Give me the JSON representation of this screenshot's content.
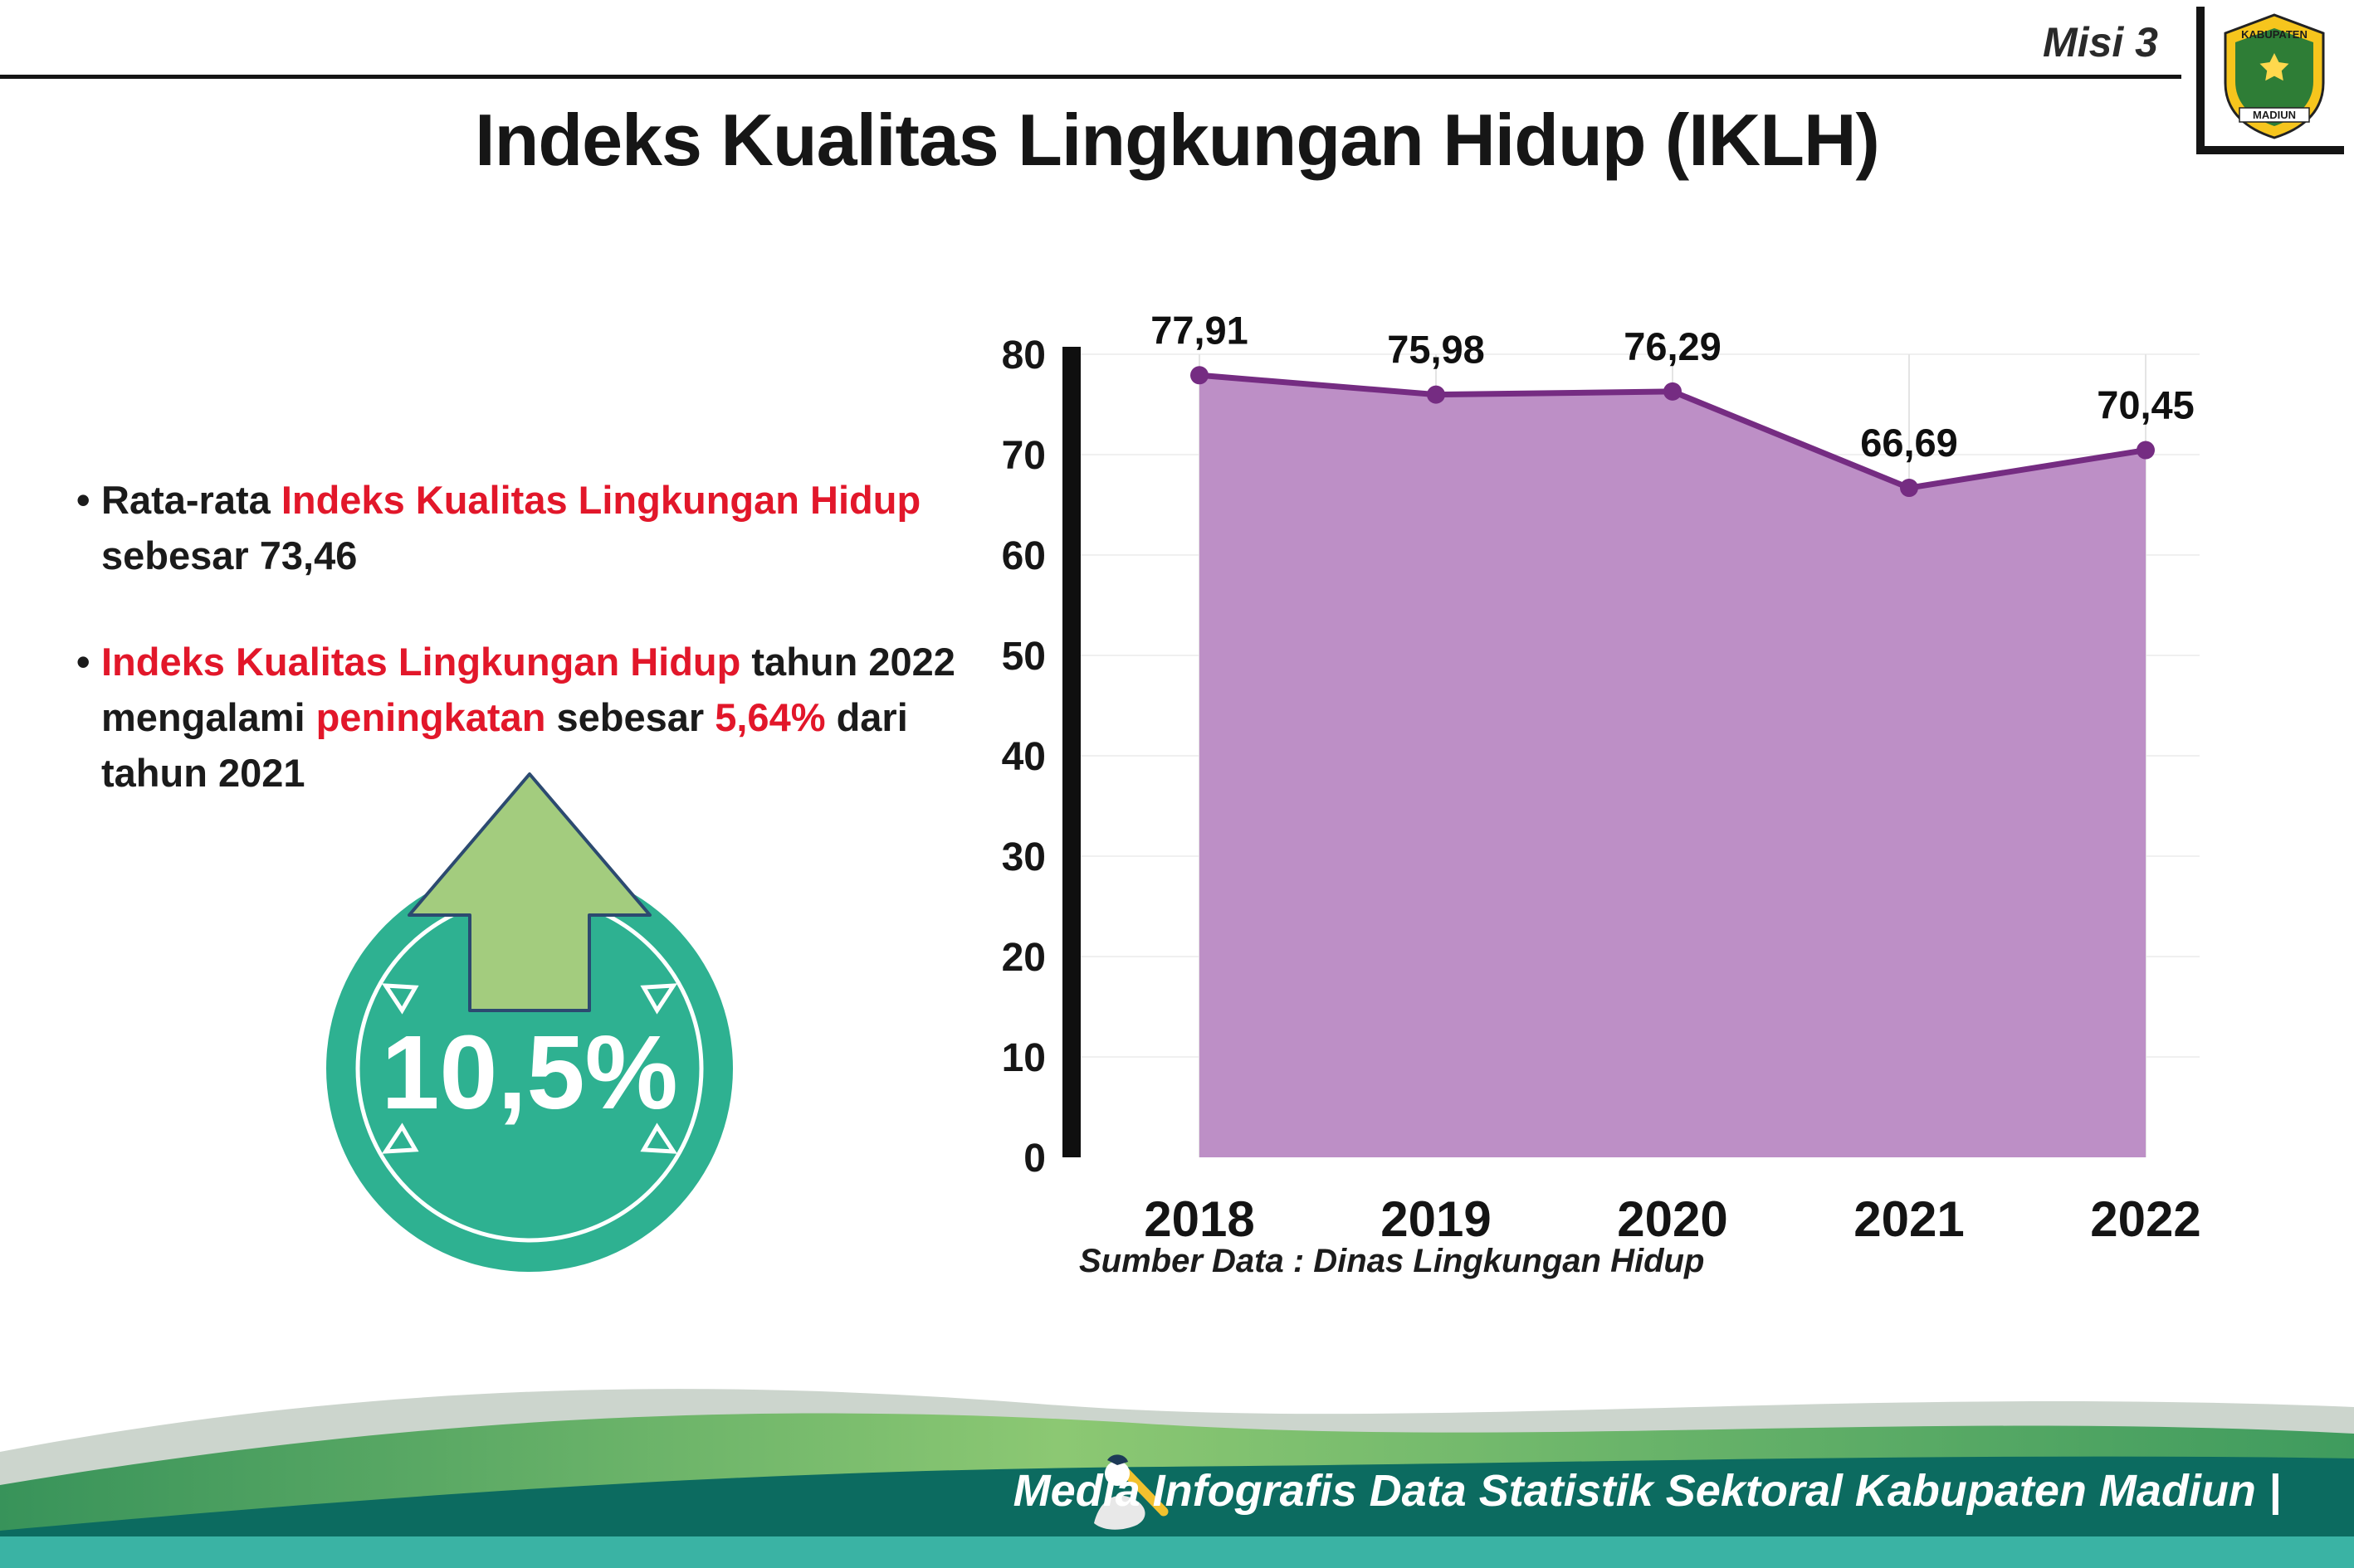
{
  "header": {
    "misi_label": "Misi 3",
    "title": "Indeks Kualitas Lingkungan Hidup (IKLH)",
    "logo": {
      "top_text": "KABUPATEN",
      "bottom_text": "MADIUN"
    }
  },
  "bullets": [
    {
      "segments": [
        {
          "text": "Rata-rata ",
          "red": false
        },
        {
          "text": "Indeks Kualitas Lingkungan Hidup",
          "red": true
        },
        {
          "text": " sebesar 73,46",
          "red": false
        }
      ]
    },
    {
      "segments": [
        {
          "text": "Indeks Kualitas Lingkungan Hidup",
          "red": true
        },
        {
          "text": " tahun 2022 mengalami ",
          "red": false
        },
        {
          "text": "peningkatan",
          "red": true
        },
        {
          "text": " sebesar ",
          "red": false
        },
        {
          "text": "5,64%",
          "red": true
        },
        {
          "text": " dari tahun 2021",
          "red": false
        }
      ]
    }
  ],
  "badge": {
    "value": "10,5%"
  },
  "chart_data": {
    "type": "area",
    "title": "",
    "categories": [
      "2018",
      "2019",
      "2020",
      "2021",
      "2022"
    ],
    "values": [
      77.91,
      75.98,
      76.29,
      66.69,
      70.45
    ],
    "labels": [
      "77,91",
      "75,98",
      "76,29",
      "66,69",
      "70,45"
    ],
    "ylim": [
      0,
      80
    ],
    "yticks": [
      0,
      10,
      20,
      30,
      40,
      50,
      60,
      70,
      80
    ],
    "grid": true,
    "legend": "none",
    "source": "Sumber Data : Dinas Lingkungan Hidup",
    "colors": {
      "area": "#bd8fc6",
      "line": "#752c82"
    }
  },
  "footer": {
    "credit": "Media Infografis Data Statistik Sektoral Kabupaten Madiun |"
  },
  "colors": {
    "red_text": "#e2172a",
    "badge_circle": "#2eb191",
    "badge_arrow": "#a3cc7e",
    "footer_bar": "#3ab3a4"
  }
}
